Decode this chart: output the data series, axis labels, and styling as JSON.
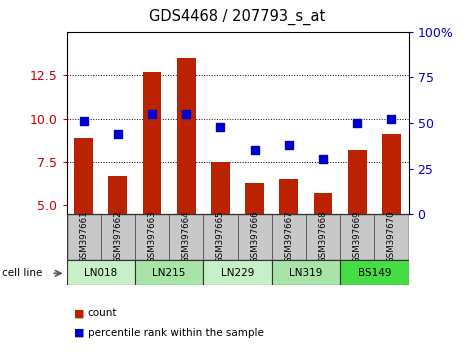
{
  "title": "GDS4468 / 207793_s_at",
  "samples": [
    "GSM397661",
    "GSM397662",
    "GSM397663",
    "GSM397664",
    "GSM397665",
    "GSM397666",
    "GSM397667",
    "GSM397668",
    "GSM397669",
    "GSM397670"
  ],
  "count_values": [
    8.9,
    6.7,
    12.7,
    13.5,
    7.5,
    6.3,
    6.5,
    5.7,
    8.2,
    9.1
  ],
  "percentile_values": [
    51,
    44,
    55,
    55,
    48,
    35,
    38,
    30,
    50,
    52
  ],
  "cell_lines": [
    {
      "label": "LN018",
      "start": 0,
      "end": 2,
      "color": "#c8f0c8"
    },
    {
      "label": "LN215",
      "start": 2,
      "end": 4,
      "color": "#a8e4a8"
    },
    {
      "label": "LN229",
      "start": 4,
      "end": 6,
      "color": "#c8f0c8"
    },
    {
      "label": "LN319",
      "start": 6,
      "end": 8,
      "color": "#a8e4a8"
    },
    {
      "label": "BS149",
      "start": 8,
      "end": 10,
      "color": "#44dd44"
    }
  ],
  "ylim_left": [
    4.5,
    15
  ],
  "ylim_right": [
    0,
    100
  ],
  "yticks_left": [
    5.0,
    7.5,
    10.0,
    12.5
  ],
  "yticks_right": [
    0,
    25,
    50,
    75,
    100
  ],
  "bar_color": "#bb2200",
  "dot_color": "#0000cc",
  "bar_width": 0.55,
  "grid_yticks": [
    7.5,
    10.0,
    12.5
  ],
  "label_count": "count",
  "label_percentile": "percentile rank within the sample",
  "cell_line_label": "cell line",
  "tick_label_color_left": "#cc0000",
  "tick_label_color_right": "#0000cc",
  "bar_bottom": 4.5
}
